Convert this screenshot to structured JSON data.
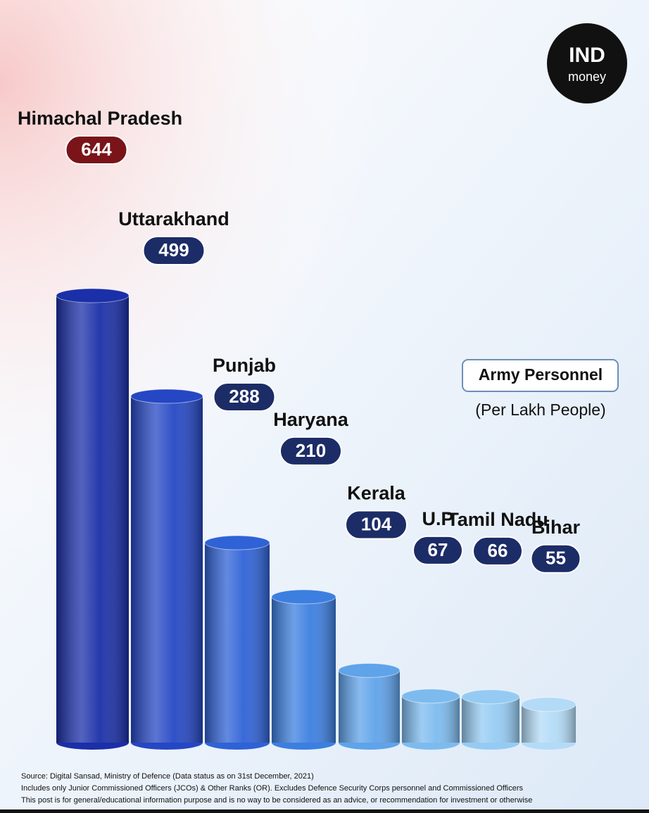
{
  "chart_data": {
    "type": "bar",
    "legend_title": "Army Personnel",
    "subtitle": "(Per Lakh People)",
    "categories": [
      "Himachal Pradesh",
      "Uttarakhand",
      "Punjab",
      "Haryana",
      "Kerala",
      "U.P",
      "Tamil Nadu",
      "Bihar"
    ],
    "values": [
      644,
      499,
      288,
      210,
      104,
      67,
      66,
      55
    ],
    "colors": [
      "#1b2fa8",
      "#2547c4",
      "#2f62d6",
      "#3c7fe0",
      "#5fa3ea",
      "#7dbbef",
      "#95cbf3",
      "#b3dbf7"
    ],
    "badge_color": "#1c2c66",
    "highlight_badge_color": "#7a1418",
    "notes": [
      "Source: Digital Sansad, Ministry of Defence (Data status as on 31st December, 2021)",
      "Includes only Junior Commissioned Officers (JCOs) & Other Ranks (OR). Excludes Defence Security Corps personnel and Commissioned Officers",
      "This post is for general/educational information purpose and is no way to be considered as an advice, or recommendation for investment or otherwise"
    ],
    "logo": [
      "IND",
      "money"
    ]
  }
}
